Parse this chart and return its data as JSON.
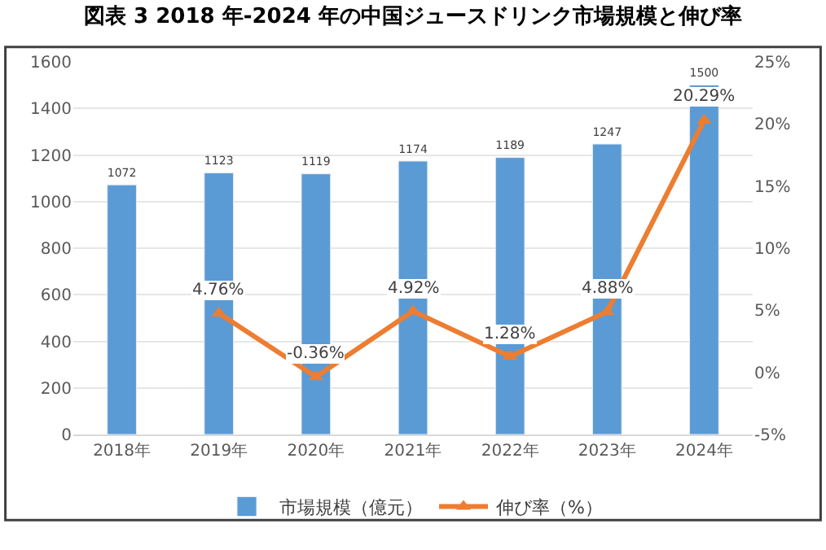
{
  "chart_data": {
    "type": "bar",
    "title": "図表 3 2018 年-2024 年の中国ジュースドリンク市場規模と伸び率",
    "categories": [
      "2018年",
      "2019年",
      "2020年",
      "2021年",
      "2022年",
      "2023年",
      "2024年"
    ],
    "series": [
      {
        "name": "市場規模（億元）",
        "color": "#5b9bd5",
        "values": [
          1072,
          1123,
          1119,
          1174,
          1189,
          1247,
          1500
        ],
        "data_labels": true
      },
      {
        "name": "伸び率（%）",
        "type": "line",
        "axis": "y2",
        "color": "#ed7d31",
        "marker": "triangle",
        "values": [
          null,
          4.76,
          -0.36,
          4.92,
          1.28,
          4.88,
          20.29
        ],
        "value_labels": [
          null,
          "4.76%",
          "-0.36%",
          "4.92%",
          "1.28%",
          "4.88%",
          "20.29%"
        ]
      }
    ],
    "ylim": [
      0,
      1600
    ],
    "yticks": [
      0,
      200,
      400,
      600,
      800,
      1000,
      1200,
      1400,
      1600
    ],
    "y2lim": [
      -5,
      25
    ],
    "y2ticks": [
      {
        "value": -5,
        "label": "-5%"
      },
      {
        "value": 0,
        "label": "0%"
      },
      {
        "value": 5,
        "label": "5%"
      },
      {
        "value": 10,
        "label": "10%"
      },
      {
        "value": 15,
        "label": "15%"
      },
      {
        "value": 20,
        "label": "20%"
      },
      {
        "value": 25,
        "label": "25%"
      }
    ],
    "grid": "y",
    "legend": "bottom"
  }
}
